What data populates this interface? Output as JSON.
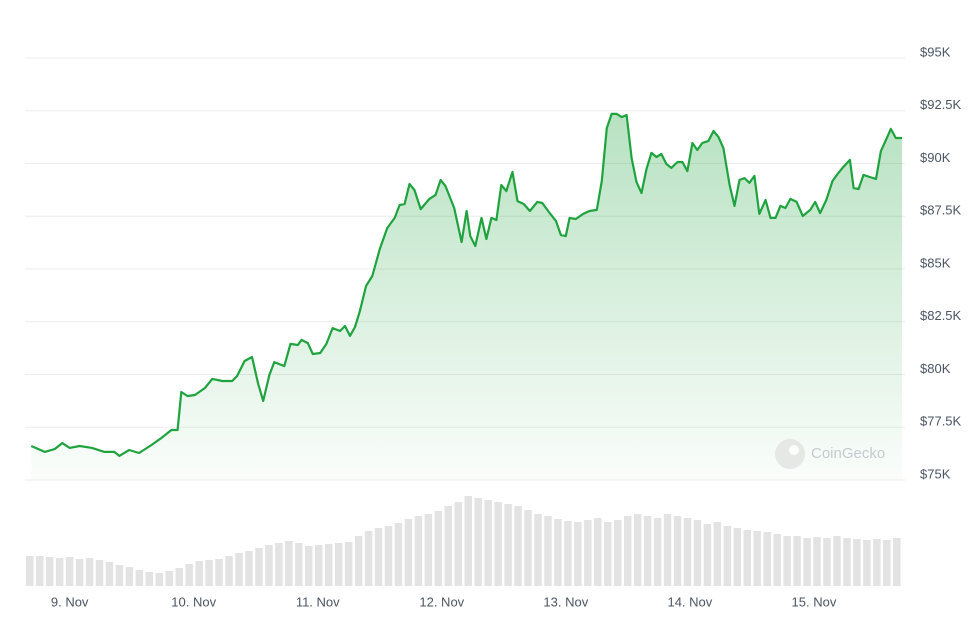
{
  "chart_data": {
    "type": "area",
    "color": "#1fa33e",
    "grid": true,
    "xlim": [
      -0.36,
      6.71
    ],
    "xticks": [
      {
        "value": 0,
        "label": "9. Nov"
      },
      {
        "value": 1,
        "label": "10. Nov"
      },
      {
        "value": 2,
        "label": "11. Nov"
      },
      {
        "value": 3,
        "label": "12. Nov"
      },
      {
        "value": 4,
        "label": "13. Nov"
      },
      {
        "value": 5,
        "label": "14. Nov"
      },
      {
        "value": 6,
        "label": "15. Nov"
      }
    ],
    "ylim": [
      75000,
      95000
    ],
    "yticks": [
      {
        "value": 75000,
        "label": "$75K"
      },
      {
        "value": 77500,
        "label": "$77.5K"
      },
      {
        "value": 80000,
        "label": "$80K"
      },
      {
        "value": 82500,
        "label": "$82.5K"
      },
      {
        "value": 85000,
        "label": "$85K"
      },
      {
        "value": 87500,
        "label": "$87.5K"
      },
      {
        "value": 90000,
        "label": "$90K"
      },
      {
        "value": 92500,
        "label": "$92.5K"
      },
      {
        "value": 95000,
        "label": "$95K"
      }
    ],
    "x": [
      -0.31,
      -0.2,
      -0.12,
      -0.06,
      0,
      0.08,
      0.18,
      0.28,
      0.36,
      0.4,
      0.48,
      0.56,
      0.66,
      0.74,
      0.82,
      0.87,
      0.9,
      0.95,
      1.01,
      1.09,
      1.15,
      1.23,
      1.31,
      1.35,
      1.41,
      1.47,
      1.52,
      1.56,
      1.61,
      1.65,
      1.73,
      1.78,
      1.84,
      1.87,
      1.92,
      1.96,
      2.02,
      2.07,
      2.12,
      2.18,
      2.22,
      2.26,
      2.3,
      2.34,
      2.39,
      2.44,
      2.5,
      2.56,
      2.62,
      2.66,
      2.7,
      2.74,
      2.78,
      2.83,
      2.9,
      2.95,
      2.99,
      3.03,
      3.1,
      3.16,
      3.2,
      3.23,
      3.27,
      3.32,
      3.36,
      3.4,
      3.44,
      3.48,
      3.52,
      3.57,
      3.61,
      3.66,
      3.71,
      3.77,
      3.81,
      3.87,
      3.92,
      3.96,
      4.0,
      4.03,
      4.08,
      4.14,
      4.19,
      4.25,
      4.29,
      4.33,
      4.37,
      4.41,
      4.45,
      4.49,
      4.53,
      4.57,
      4.61,
      4.65,
      4.69,
      4.73,
      4.77,
      4.81,
      4.85,
      4.9,
      4.94,
      4.98,
      5.02,
      5.06,
      5.1,
      5.15,
      5.19,
      5.23,
      5.27,
      5.32,
      5.36,
      5.4,
      5.44,
      5.48,
      5.52,
      5.56,
      5.61,
      5.65,
      5.69,
      5.73,
      5.77,
      5.81,
      5.86,
      5.91,
      5.97,
      6.01,
      6.05,
      6.1,
      6.15,
      6.19,
      6.23,
      6.29,
      6.32,
      6.36,
      6.4,
      6.45,
      6.5,
      6.54,
      6.58,
      6.62,
      6.66,
      6.71
    ],
    "values": [
      76610,
      76330,
      76470,
      76750,
      76520,
      76610,
      76520,
      76330,
      76330,
      76140,
      76420,
      76280,
      76660,
      76990,
      77370,
      77370,
      79170,
      78980,
      79030,
      79360,
      79790,
      79690,
      79690,
      79930,
      80640,
      80830,
      79550,
      78750,
      79980,
      80590,
      80400,
      81450,
      81400,
      81640,
      81490,
      80970,
      81020,
      81450,
      82200,
      82060,
      82300,
      81830,
      82250,
      83010,
      84200,
      84670,
      85950,
      86940,
      87420,
      88030,
      88080,
      89030,
      88740,
      87840,
      88320,
      88510,
      89220,
      88930,
      87890,
      86280,
      87750,
      86560,
      86090,
      87420,
      86420,
      87420,
      87320,
      88980,
      88690,
      89600,
      88220,
      88080,
      87750,
      88180,
      88130,
      87650,
      87280,
      86610,
      86560,
      87420,
      87370,
      87610,
      87750,
      87800,
      89170,
      91680,
      92350,
      92350,
      92200,
      92300,
      90260,
      89120,
      88600,
      89740,
      90500,
      90310,
      90450,
      89980,
      89790,
      90070,
      90070,
      89640,
      90970,
      90640,
      90970,
      91070,
      91540,
      91260,
      90730,
      88980,
      87990,
      89220,
      89310,
      89080,
      89410,
      87610,
      88270,
      87420,
      87420,
      87990,
      87890,
      88320,
      88180,
      87510,
      87800,
      88180,
      87650,
      88270,
      89170,
      89500,
      89790,
      90170,
      88840,
      88790,
      89460,
      89360,
      89270,
      90590,
      91110,
      91640,
      91210,
      91210
    ],
    "volume": {
      "color": "#e3e3e3",
      "ylim": [
        0,
        100
      ],
      "values": [
        30,
        30,
        29,
        28,
        29,
        27,
        28,
        26,
        24,
        21,
        19,
        16,
        14,
        13,
        15,
        18,
        22,
        25,
        26,
        27,
        30,
        33,
        35,
        38,
        41,
        43,
        45,
        43,
        40,
        41,
        42,
        43,
        44,
        50,
        55,
        58,
        60,
        63,
        67,
        70,
        72,
        75,
        80,
        84,
        90,
        88,
        86,
        84,
        82,
        80,
        76,
        72,
        70,
        67,
        65,
        64,
        66,
        68,
        64,
        66,
        70,
        72,
        70,
        68,
        72,
        70,
        68,
        66,
        62,
        64,
        60,
        58,
        56,
        55,
        54,
        52,
        50,
        50,
        48,
        49,
        48,
        50,
        48,
        47,
        46,
        47,
        46,
        48
      ]
    },
    "watermark": "CoinGecko"
  }
}
